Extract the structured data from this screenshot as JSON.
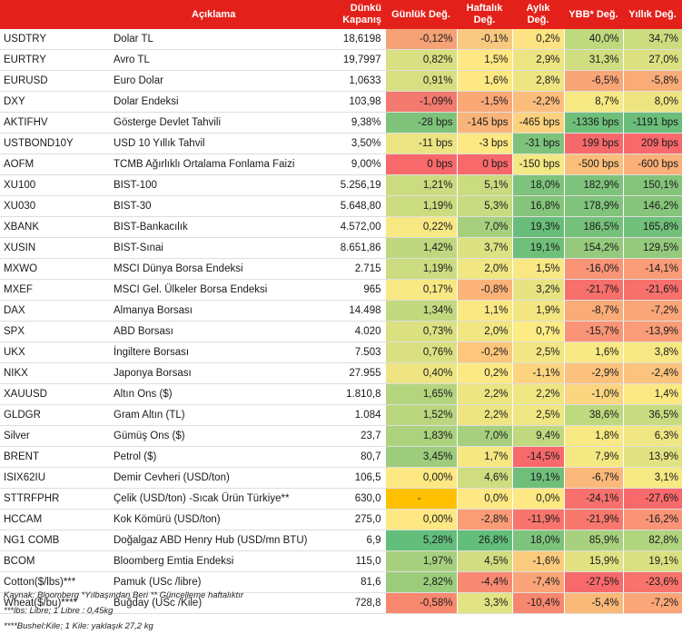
{
  "headers": {
    "code": "",
    "desc": "Açıklama",
    "price_l1": "Dünkü",
    "price_l2": "Kapanış",
    "daily": "Günlük Değ.",
    "weekly_l1": "Haftalık",
    "weekly_l2": "Değ.",
    "monthly_l1": "Aylık",
    "monthly_l2": "Değ.",
    "ytd": "YBB* Değ.",
    "yearly": "Yıllık Değ."
  },
  "rows": [
    {
      "code": "USDTRY",
      "desc": "Dolar TL",
      "price": "18,6198",
      "changes": [
        [
          "-0,12%",
          "#f5a276"
        ],
        [
          "-0,1%",
          "#f8c981"
        ],
        [
          "0,2%",
          "#fde383"
        ],
        [
          "40,0%",
          "#bed97e"
        ],
        [
          "34,7%",
          "#ccdd80"
        ]
      ]
    },
    {
      "code": "EURTRY",
      "desc": "Avro TL",
      "price": "19,7997",
      "changes": [
        [
          "0,82%",
          "#d9e082"
        ],
        [
          "1,5%",
          "#fde883"
        ],
        [
          "2,9%",
          "#ede582"
        ],
        [
          "31,3%",
          "#d0de80"
        ],
        [
          "27,0%",
          "#dbe181"
        ]
      ]
    },
    {
      "code": "EURUSD",
      "desc": "Euro Dolar",
      "price": "1,0633",
      "changes": [
        [
          "0,91%",
          "#d7df81"
        ],
        [
          "1,6%",
          "#fde883"
        ],
        [
          "2,8%",
          "#eee582"
        ],
        [
          "-6,5%",
          "#f8a677"
        ],
        [
          "-5,8%",
          "#faac78"
        ]
      ]
    },
    {
      "code": "DXY",
      "desc": "Dolar Endeksi",
      "price": "103,98",
      "changes": [
        [
          "-1,09%",
          "#f27a6e"
        ],
        [
          "-1,5%",
          "#fba877"
        ],
        [
          "-2,2%",
          "#fcbd7c"
        ],
        [
          "8,7%",
          "#f6e983"
        ],
        [
          "8,0%",
          "#eee582"
        ]
      ]
    },
    {
      "code": "AKTIFHV",
      "desc": "Gösterge Devlet Tahvili",
      "price": "9,38%",
      "changes": [
        [
          "-28 bps",
          "#7fc37b"
        ],
        [
          "-145 bps",
          "#f9b47a"
        ],
        [
          "-465 bps",
          "#fcd27f"
        ],
        [
          "-1336 bps",
          "#6ebf7a"
        ],
        [
          "-1191 bps",
          "#6abe7a"
        ]
      ]
    },
    {
      "code": "USTBOND10Y",
      "desc": "USD 10 Yıllık Tahvil",
      "price": "3,50%",
      "changes": [
        [
          "-11 bps",
          "#ebe482"
        ],
        [
          "-3 bps",
          "#fde883"
        ],
        [
          "-31 bps",
          "#7dc37b"
        ],
        [
          "199 bps",
          "#f6696b"
        ],
        [
          "209 bps",
          "#f8696b"
        ]
      ]
    },
    {
      "code": "AOFM",
      "desc": "TCMB Ağırlıklı Ortalama Fonlama Faizi",
      "price": "9,00%",
      "changes": [
        [
          "0 bps",
          "#f8696b"
        ],
        [
          "0 bps",
          "#f8696b"
        ],
        [
          "-150 bps",
          "#f3e883"
        ],
        [
          "-500 bps",
          "#fcbf7b"
        ],
        [
          "-600 bps",
          "#fbb079"
        ]
      ]
    },
    {
      "code": "XU100",
      "desc": "BIST-100",
      "price": "5.256,19",
      "changes": [
        [
          "1,21%",
          "#cbdc80"
        ],
        [
          "5,1%",
          "#cadb80"
        ],
        [
          "18,0%",
          "#7dc37b"
        ],
        [
          "182,9%",
          "#7ec37b"
        ],
        [
          "150,1%",
          "#84c47b"
        ]
      ]
    },
    {
      "code": "XU030",
      "desc": "BIST-30",
      "price": "5.648,80",
      "changes": [
        [
          "1,19%",
          "#ccdc80"
        ],
        [
          "5,3%",
          "#c8db80"
        ],
        [
          "16,8%",
          "#85c57b"
        ],
        [
          "178,9%",
          "#80c37b"
        ],
        [
          "146,2%",
          "#86c57b"
        ]
      ]
    },
    {
      "code": "XBANK",
      "desc": "BIST-Bankacılık",
      "price": "4.572,00",
      "changes": [
        [
          "0,22%",
          "#f7e883"
        ],
        [
          "7,0%",
          "#a6d07e"
        ],
        [
          "19,3%",
          "#68bd7a"
        ],
        [
          "186,5%",
          "#75c07b"
        ],
        [
          "165,8%",
          "#70bf7a"
        ]
      ]
    },
    {
      "code": "XUSIN",
      "desc": "BIST-Sınai",
      "price": "8.651,86",
      "changes": [
        [
          "1,42%",
          "#bfd87f"
        ],
        [
          "3,7%",
          "#dce182"
        ],
        [
          "19,1%",
          "#6fbf7a"
        ],
        [
          "154,2%",
          "#95ca7d"
        ],
        [
          "129,5%",
          "#95ca7d"
        ]
      ]
    },
    {
      "code": "MXWO",
      "desc": "MSCI Dünya Borsa Endeksi",
      "price": "2.715",
      "changes": [
        [
          "1,19%",
          "#ccdc80"
        ],
        [
          "2,0%",
          "#f0e682"
        ],
        [
          "1,5%",
          "#f8e783"
        ],
        [
          "-16,0%",
          "#f99477"
        ],
        [
          "-14,1%",
          "#f99c77"
        ]
      ]
    },
    {
      "code": "MXEF",
      "desc": "MSCI Gel. Ülkeler Borsa Endeksi",
      "price": "965",
      "changes": [
        [
          "0,17%",
          "#f8e883"
        ],
        [
          "-0,8%",
          "#fcb37a"
        ],
        [
          "3,2%",
          "#e7e382"
        ],
        [
          "-21,7%",
          "#f8706c"
        ],
        [
          "-21,6%",
          "#f8706c"
        ]
      ]
    },
    {
      "code": "DAX",
      "desc": "Almanya Borsası",
      "price": "14.498",
      "changes": [
        [
          "1,34%",
          "#c3d97f"
        ],
        [
          "1,1%",
          "#f9e883"
        ],
        [
          "1,9%",
          "#f3e682"
        ],
        [
          "-8,7%",
          "#f9ac78"
        ],
        [
          "-7,2%",
          "#faa678"
        ]
      ]
    },
    {
      "code": "SPX",
      "desc": "ABD Borsası",
      "price": "4.020",
      "changes": [
        [
          "0,73%",
          "#dbe081"
        ],
        [
          "2,0%",
          "#f0e682"
        ],
        [
          "0,7%",
          "#fdeb84"
        ],
        [
          "-15,7%",
          "#f99477"
        ],
        [
          "-13,9%",
          "#f99c77"
        ]
      ]
    },
    {
      "code": "UKX",
      "desc": "İngiltere Borsası",
      "price": "7.503",
      "changes": [
        [
          "0,76%",
          "#dae081"
        ],
        [
          "-0,2%",
          "#fcc77d"
        ],
        [
          "2,5%",
          "#f1e683"
        ],
        [
          "1,6%",
          "#f9e984"
        ],
        [
          "3,8%",
          "#f7e883"
        ]
      ]
    },
    {
      "code": "NIKX",
      "desc": "Japonya Borsası",
      "price": "27.955",
      "changes": [
        [
          "0,40%",
          "#eee582"
        ],
        [
          "0,2%",
          "#fde983"
        ],
        [
          "-1,1%",
          "#fcd37f"
        ],
        [
          "-2,9%",
          "#fbc17d"
        ],
        [
          "-2,4%",
          "#fbc37d"
        ]
      ]
    },
    {
      "code": "XAUUSD",
      "desc": "Altın Ons ($)",
      "price": "1.810,8",
      "changes": [
        [
          "1,65%",
          "#b4d57e"
        ],
        [
          "2,2%",
          "#ede582"
        ],
        [
          "2,2%",
          "#efe682"
        ],
        [
          "-1,0%",
          "#fbd57f"
        ],
        [
          "1,4%",
          "#fce983"
        ]
      ]
    },
    {
      "code": "GLDGR",
      "desc": "Gram Altın (TL)",
      "price": "1.084",
      "changes": [
        [
          "1,52%",
          "#bad77f"
        ],
        [
          "2,2%",
          "#ede582"
        ],
        [
          "2,5%",
          "#efe582"
        ],
        [
          "38,6%",
          "#bfd97f"
        ],
        [
          "36,5%",
          "#c8db80"
        ]
      ]
    },
    {
      "code": "Silver",
      "desc": "Gümüş Ons ($)",
      "price": "23,7",
      "changes": [
        [
          "1,83%",
          "#acd27e"
        ],
        [
          "7,0%",
          "#a6d07e"
        ],
        [
          "9,4%",
          "#c0d97f"
        ],
        [
          "1,8%",
          "#f9e984"
        ],
        [
          "6,3%",
          "#f0e683"
        ]
      ]
    },
    {
      "code": "BRENT",
      "desc": "Petrol ($)",
      "price": "80,7",
      "changes": [
        [
          "3,45%",
          "#9ccc7c"
        ],
        [
          "1,7%",
          "#f5e782"
        ],
        [
          "-14,5%",
          "#f8696b"
        ],
        [
          "7,9%",
          "#f4e883"
        ],
        [
          "13,9%",
          "#e3e282"
        ]
      ]
    },
    {
      "code": "ISIX62IU",
      "desc": "Demir Cevheri (USD/ton)",
      "price": "106,5",
      "changes": [
        [
          "0,00%",
          "#fde883"
        ],
        [
          "4,6%",
          "#cfdd80"
        ],
        [
          "19,1%",
          "#6fbf7a"
        ],
        [
          "-6,7%",
          "#fab87a"
        ],
        [
          "3,1%",
          "#f6e883"
        ]
      ]
    },
    {
      "code": "STTRFPHR",
      "desc": "Çelik (USD/ton) -Sıcak Ürün Türkiye**",
      "price": "630,0",
      "changes": [
        [
          "-",
          "#ffc000"
        ],
        [
          "0,0%",
          "#fde883"
        ],
        [
          "0,0%",
          "#fde883"
        ],
        [
          "-24,1%",
          "#f8716c"
        ],
        [
          "-27,6%",
          "#f8696b"
        ]
      ]
    },
    {
      "code": "HCCAM",
      "desc": "Kok Kömürü (USD/ton)",
      "price": "275,0",
      "changes": [
        [
          "0,00%",
          "#fde883"
        ],
        [
          "-2,8%",
          "#fa9d77"
        ],
        [
          "-11,9%",
          "#f8756d"
        ],
        [
          "-21,9%",
          "#f8786d"
        ],
        [
          "-16,2%",
          "#f99476"
        ]
      ]
    },
    {
      "code": "NG1 COMB",
      "desc": "Doğalgaz ABD Henry Hub (USD/mn BTU)",
      "price": "6,9",
      "changes": [
        [
          "5,28%",
          "#63be7b"
        ],
        [
          "26,8%",
          "#63be7b"
        ],
        [
          "18,0%",
          "#7dc37b"
        ],
        [
          "85,9%",
          "#a8d17e"
        ],
        [
          "82,8%",
          "#b1d47f"
        ]
      ]
    },
    {
      "code": "BCOM",
      "desc": "Bloomberg Emtia Endeksi",
      "price": "115,0",
      "changes": [
        [
          "1,97%",
          "#a7d07e"
        ],
        [
          "4,5%",
          "#d1dd80"
        ],
        [
          "-1,6%",
          "#fbca7d"
        ],
        [
          "15,9%",
          "#e2e282"
        ],
        [
          "19,1%",
          "#d9e081"
        ]
      ]
    },
    {
      "code": "Cotton($/lbs)***",
      "desc": "Pamuk (USc /libre)",
      "price": "81,6",
      "changes": [
        [
          "2,82%",
          "#9bcc7c"
        ],
        [
          "-4,4%",
          "#f88a73"
        ],
        [
          "-7,4%",
          "#f9a577"
        ],
        [
          "-27,5%",
          "#f8696b"
        ],
        [
          "-23,6%",
          "#f8736c"
        ]
      ]
    },
    {
      "code": "Wheat($/bu)****",
      "desc": "Buğday (USc /Kile)",
      "price": "728,8",
      "changes": [
        [
          "-0,58%",
          "#f8886f"
        ],
        [
          "3,3%",
          "#e2e382"
        ],
        [
          "-10,4%",
          "#f8876f"
        ],
        [
          "-5,4%",
          "#fab979"
        ],
        [
          "-7,2%",
          "#faa678"
        ]
      ]
    }
  ],
  "footer": {
    "line1": "Kaynak: Bloomberg *Yılbaşından Beri  ** Güncelleme haftalıktır",
    "line2": "***lbs: Libre; 1 Libre : 0,45kg",
    "line3": "****Bushel:Kile; 1 Kile: yaklaşık 27,2 kg"
  }
}
